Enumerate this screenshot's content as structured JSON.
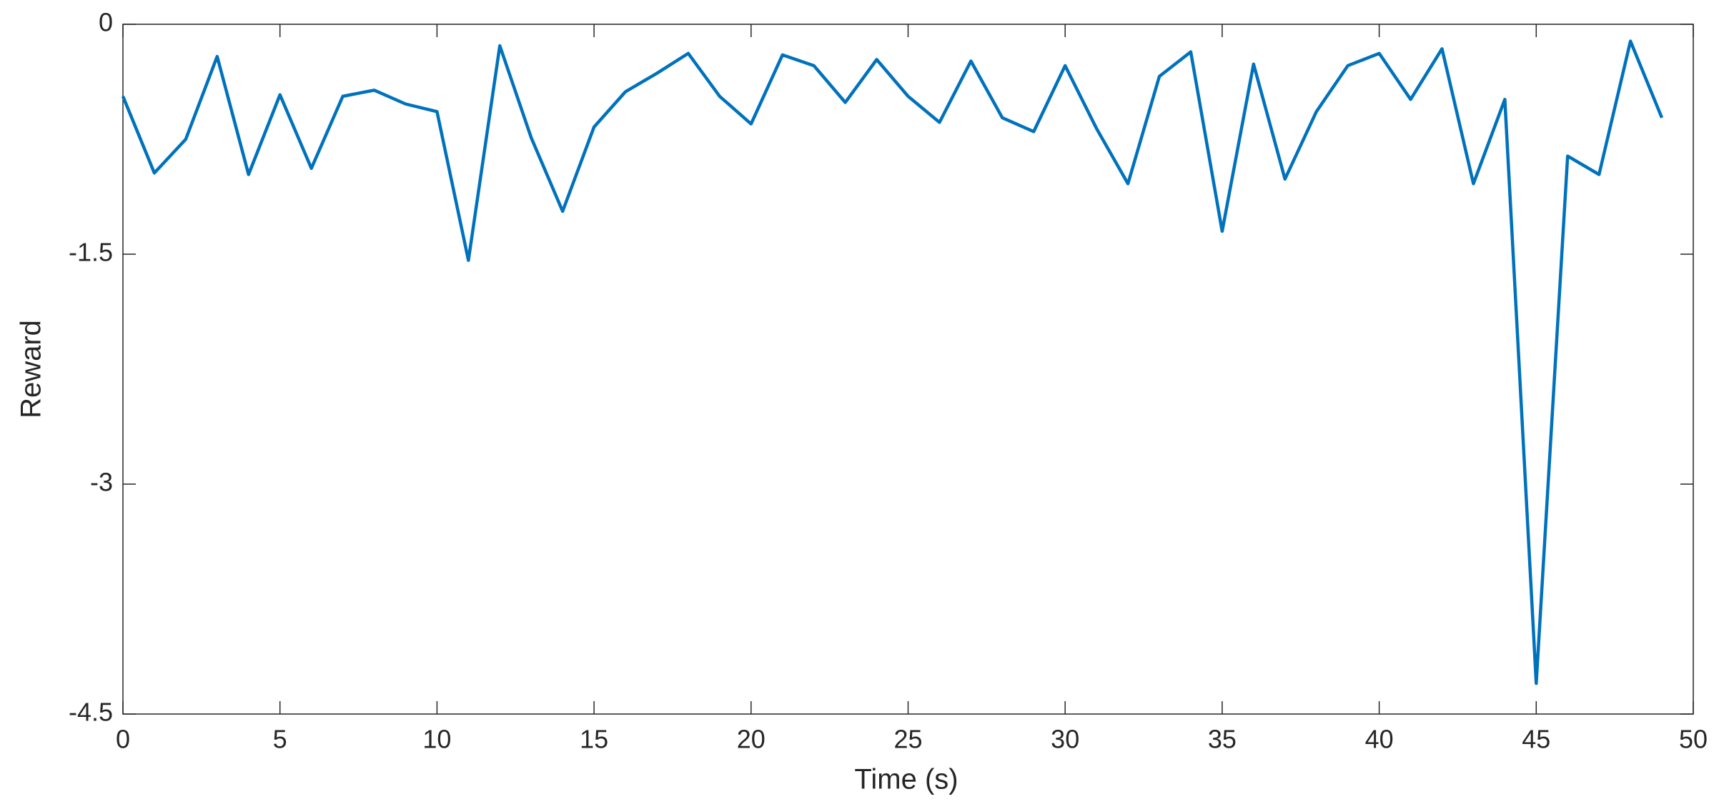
{
  "chart_data": {
    "type": "line",
    "x_label": "Time (s)",
    "y_label": "Reward",
    "x": [
      0,
      1,
      2,
      3,
      4,
      5,
      6,
      7,
      8,
      9,
      10,
      11,
      12,
      13,
      14,
      15,
      16,
      17,
      18,
      19,
      20,
      21,
      22,
      23,
      24,
      25,
      26,
      27,
      28,
      29,
      30,
      31,
      32,
      33,
      34,
      35,
      36,
      37,
      38,
      39,
      40,
      41,
      42,
      43,
      44,
      45,
      46,
      47,
      48,
      49
    ],
    "series": [
      {
        "color": "#0072BD",
        "values": [
          -0.47,
          -0.97,
          -0.75,
          -0.21,
          -0.98,
          -0.46,
          -0.94,
          -0.47,
          -0.43,
          -0.52,
          -0.57,
          -1.54,
          -0.14,
          -0.74,
          -1.22,
          -0.67,
          -0.44,
          -0.32,
          -0.19,
          -0.47,
          -0.65,
          -0.2,
          -0.27,
          -0.51,
          -0.23,
          -0.47,
          -0.64,
          -0.24,
          -0.61,
          -0.7,
          -0.27,
          -0.68,
          -1.04,
          -0.34,
          -0.18,
          -1.35,
          -0.26,
          -1.01,
          -0.57,
          -0.27,
          -0.19,
          -0.49,
          -0.16,
          -1.04,
          -0.49,
          -4.3,
          -0.86,
          -0.98,
          -0.11,
          -0.61
        ]
      }
    ],
    "xlim": [
      0,
      50
    ],
    "xticks": [
      0,
      5,
      10,
      15,
      20,
      25,
      30,
      35,
      40,
      45,
      50
    ],
    "ylim": [
      -4.5,
      0
    ],
    "yticks": [
      -4.5,
      -3,
      -1.5,
      0
    ],
    "grid": false
  }
}
